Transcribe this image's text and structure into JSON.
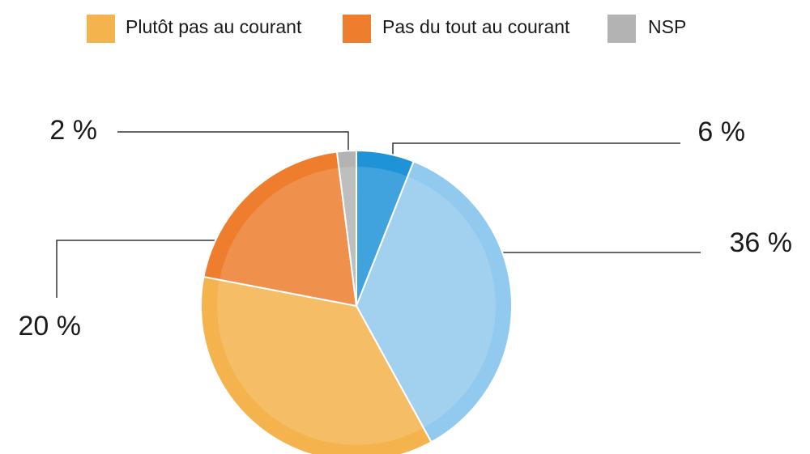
{
  "chart_data": {
    "type": "pie",
    "categories": [
      null,
      null,
      "Plutôt pas au courant",
      "Pas du tout au courant",
      "NSP"
    ],
    "values": [
      6,
      36,
      36,
      20,
      2
    ],
    "value_labels": [
      "6 %",
      "36 %",
      null,
      "20 %",
      "2 %"
    ],
    "colors": [
      "#1f93d8",
      "#92c9ee",
      "#f4b34c",
      "#ee7d2e",
      "#b3b3b3"
    ]
  }
}
